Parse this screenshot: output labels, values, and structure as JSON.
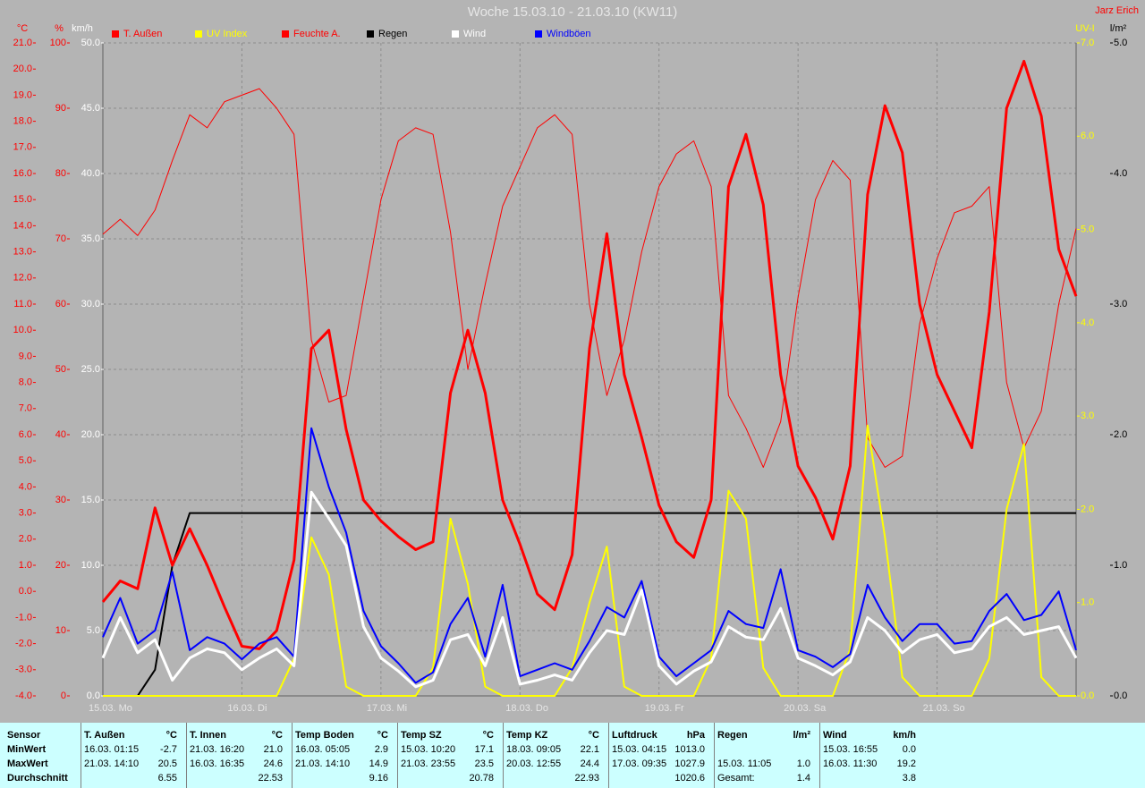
{
  "chart_data": {
    "type": "line",
    "title": "Woche 15.03.10 - 21.03.10 (KW11)",
    "subtitle": "Jarz Erich",
    "grid": true,
    "grid_axis": 2,
    "x": [
      0,
      3,
      6,
      9,
      12,
      15,
      18,
      21,
      24,
      27,
      30,
      33,
      36,
      39,
      42,
      45,
      48,
      51,
      54,
      57,
      60,
      63,
      66,
      69,
      72,
      75,
      78,
      81,
      84,
      87,
      90,
      93,
      96,
      99,
      102,
      105,
      108,
      111,
      114,
      117,
      120,
      123,
      126,
      129,
      132,
      135,
      138,
      141,
      144,
      147,
      150,
      153,
      156,
      159,
      162,
      165,
      168
    ],
    "xlim": [
      0,
      168
    ],
    "xticks": [
      {
        "value": 0,
        "label": "15.03. Mo"
      },
      {
        "value": 24,
        "label": "16.03. Di"
      },
      {
        "value": 48,
        "label": "17.03. Mi"
      },
      {
        "value": 72,
        "label": "18.03. Do"
      },
      {
        "value": 96,
        "label": "19.03. Fr"
      },
      {
        "value": 120,
        "label": "20.03. Sa"
      },
      {
        "value": 144,
        "label": "21.03. So"
      }
    ],
    "axes": [
      {
        "label": "°C",
        "color": "#ff0000",
        "side": "left",
        "lim": [
          -4,
          21
        ],
        "ticks": [
          {
            "value": 21,
            "label": "21.0"
          },
          {
            "value": 20,
            "label": "20.0"
          },
          {
            "value": 19,
            "label": "19.0"
          },
          {
            "value": 18,
            "label": "18.0"
          },
          {
            "value": 17,
            "label": "17.0"
          },
          {
            "value": 16,
            "label": "16.0"
          },
          {
            "value": 15,
            "label": "15.0"
          },
          {
            "value": 14,
            "label": "14.0"
          },
          {
            "value": 13,
            "label": "13.0"
          },
          {
            "value": 12,
            "label": "12.0"
          },
          {
            "value": 11,
            "label": "11.0"
          },
          {
            "value": 10,
            "label": "10.0"
          },
          {
            "value": 9,
            "label": "9.0"
          },
          {
            "value": 8,
            "label": "8.0"
          },
          {
            "value": 7,
            "label": "7.0"
          },
          {
            "value": 6,
            "label": "6.0"
          },
          {
            "value": 5,
            "label": "5.0"
          },
          {
            "value": 4,
            "label": "4.0"
          },
          {
            "value": 3,
            "label": "3.0"
          },
          {
            "value": 2,
            "label": "2.0"
          },
          {
            "value": 1,
            "label": "1.0"
          },
          {
            "value": 0,
            "label": "0.0"
          },
          {
            "value": -1,
            "label": "-1.0"
          },
          {
            "value": -2,
            "label": "-2.0"
          },
          {
            "value": -3,
            "label": "-3.0"
          },
          {
            "value": -4,
            "label": "-4.0"
          }
        ]
      },
      {
        "label": "%",
        "color": "#ff0000",
        "side": "left",
        "lim": [
          0,
          100
        ],
        "ticks": [
          100,
          90,
          80,
          70,
          60,
          50,
          40,
          30,
          20,
          10,
          0
        ]
      },
      {
        "label": "km/h",
        "color": "#ffffff",
        "side": "left",
        "lim": [
          0,
          50
        ],
        "ticks": [
          {
            "value": 50,
            "label": "50.0"
          },
          {
            "value": 45,
            "label": "45.0"
          },
          {
            "value": 40,
            "label": "40.0"
          },
          {
            "value": 35,
            "label": "35.0"
          },
          {
            "value": 30,
            "label": "30.0"
          },
          {
            "value": 25,
            "label": "25.0"
          },
          {
            "value": 20,
            "label": "20.0"
          },
          {
            "value": 15,
            "label": "15.0"
          },
          {
            "value": 10,
            "label": "10.0"
          },
          {
            "value": 5,
            "label": "5.0"
          },
          {
            "value": 0,
            "label": "0.0"
          }
        ]
      },
      {
        "label": "UV-I",
        "color": "#ffff00",
        "side": "right",
        "lim": [
          0,
          7
        ],
        "ticks": [
          {
            "value": 7,
            "label": "7.0"
          },
          {
            "value": 6,
            "label": "6.0"
          },
          {
            "value": 5,
            "label": "5.0"
          },
          {
            "value": 4,
            "label": "4.0"
          },
          {
            "value": 3,
            "label": "3.0"
          },
          {
            "value": 2,
            "label": "2.0"
          },
          {
            "value": 1,
            "label": "1.0"
          },
          {
            "value": 0,
            "label": "0.0"
          }
        ]
      },
      {
        "label": "l/m²",
        "color": "#000000",
        "side": "right",
        "lim": [
          0,
          5
        ],
        "ticks": [
          {
            "value": 5,
            "label": "5.0"
          },
          {
            "value": 4,
            "label": "4.0"
          },
          {
            "value": 3,
            "label": "3.0"
          },
          {
            "value": 2,
            "label": "2.0"
          },
          {
            "value": 1,
            "label": "1.0"
          },
          {
            "value": 0,
            "label": "0.0"
          }
        ]
      }
    ],
    "series": [
      {
        "name": "T. Außen",
        "color": "#ff0000",
        "axis": 0,
        "width": 3,
        "values": [
          -0.4,
          0.4,
          0.1,
          3.2,
          1.0,
          2.4,
          1.0,
          -0.6,
          -2.1,
          -2.2,
          -1.5,
          1.2,
          9.3,
          10.0,
          6.2,
          3.5,
          2.7,
          2.1,
          1.6,
          1.9,
          7.6,
          10.0,
          7.6,
          3.5,
          1.8,
          -0.1,
          -0.7,
          1.4,
          9.3,
          13.7,
          8.3,
          5.9,
          3.3,
          1.9,
          1.3,
          3.5,
          15.5,
          17.5,
          14.8,
          8.3,
          4.8,
          3.6,
          2.0,
          4.8,
          15.2,
          18.6,
          16.8,
          11.0,
          8.3,
          6.9,
          5.5,
          10.7,
          18.5,
          20.3,
          18.2,
          13.1,
          11.3
        ]
      },
      {
        "name": "UV Index",
        "color": "#ffff00",
        "axis": 3,
        "width": 2,
        "values": [
          0,
          0,
          0,
          0,
          0,
          0,
          0,
          0,
          0,
          0,
          0,
          0.4,
          1.7,
          1.3,
          0.1,
          0,
          0,
          0,
          0,
          0.3,
          1.9,
          1.2,
          0.1,
          0,
          0,
          0,
          0,
          0.3,
          1.0,
          1.6,
          0.1,
          0,
          0,
          0,
          0,
          0.4,
          2.2,
          1.9,
          0.3,
          0,
          0,
          0,
          0,
          0.5,
          2.9,
          1.7,
          0.2,
          0,
          0,
          0,
          0,
          0.4,
          2.0,
          2.7,
          0.2,
          0,
          0
        ]
      },
      {
        "name": "Feuchte A.",
        "color": "#ff0000",
        "axis": 1,
        "width": 1,
        "values": [
          70.7,
          73,
          70.5,
          74.4,
          82,
          89,
          87,
          91,
          92,
          93,
          90,
          86,
          54.5,
          45,
          46,
          61,
          76,
          85,
          87,
          86,
          71,
          50,
          63,
          75,
          81,
          87,
          89,
          86,
          60,
          46,
          54.5,
          68,
          78,
          83,
          85,
          78,
          46,
          41,
          35,
          42,
          61,
          76,
          82,
          79,
          39.5,
          35,
          36.7,
          57,
          67,
          74,
          75,
          78,
          48,
          38,
          43.6,
          60,
          71.6
        ]
      },
      {
        "name": "Regen",
        "color": "#000000",
        "axis": 4,
        "width": 2,
        "values": [
          0,
          0,
          0,
          0.2,
          1.0,
          1.4,
          1.4,
          1.4,
          1.4,
          1.4,
          1.4,
          1.4,
          1.4,
          1.4,
          1.4,
          1.4,
          1.4,
          1.4,
          1.4,
          1.4,
          1.4,
          1.4,
          1.4,
          1.4,
          1.4,
          1.4,
          1.4,
          1.4,
          1.4,
          1.4,
          1.4,
          1.4,
          1.4,
          1.4,
          1.4,
          1.4,
          1.4,
          1.4,
          1.4,
          1.4,
          1.4,
          1.4,
          1.4,
          1.4,
          1.4,
          1.4,
          1.4,
          1.4,
          1.4,
          1.4,
          1.4,
          1.4,
          1.4,
          1.4,
          1.4,
          1.4,
          1.4
        ]
      },
      {
        "name": "Wind",
        "color": "#ffffff",
        "axis": 2,
        "width": 3,
        "values": [
          2.9,
          6,
          3.3,
          4.3,
          1.2,
          2.9,
          3.6,
          3.3,
          2,
          2.9,
          3.6,
          2.3,
          15.6,
          13.6,
          11.5,
          5.3,
          2.9,
          1.9,
          0.7,
          1.2,
          4.3,
          4.7,
          2.3,
          6,
          0.9,
          1.2,
          1.6,
          1.2,
          3.3,
          5,
          4.7,
          8.1,
          2.3,
          0.9,
          1.9,
          2.6,
          5.3,
          4.5,
          4.3,
          6.7,
          2.9,
          2.3,
          1.6,
          2.6,
          6,
          5,
          3.3,
          4.3,
          4.7,
          3.3,
          3.6,
          5.3,
          6,
          4.7,
          5,
          5.3,
          2.9
        ]
      },
      {
        "name": "Windböen",
        "color": "#0000ff",
        "axis": 2,
        "width": 2,
        "values": [
          4.5,
          7.5,
          4,
          5,
          9.5,
          3.5,
          4.5,
          4,
          2.8,
          4,
          4.5,
          3,
          20.5,
          16,
          12.5,
          6.5,
          3.8,
          2.5,
          1,
          1.8,
          5.5,
          7.5,
          3,
          8.5,
          1.5,
          2,
          2.5,
          2,
          4.2,
          6.8,
          6,
          8.8,
          3,
          1.5,
          2.5,
          3.5,
          6.5,
          5.5,
          5.2,
          9.7,
          3.5,
          3,
          2.2,
          3.2,
          8.5,
          6,
          4.2,
          5.5,
          5.5,
          4,
          4.2,
          6.5,
          7.8,
          5.8,
          6.2,
          8,
          3.5
        ]
      }
    ]
  },
  "table": {
    "row_labels": [
      "Sensor",
      "MinWert",
      "MaxWert",
      "Durchschnitt"
    ],
    "columns": [
      {
        "name": "T. Außen",
        "unit": "°C",
        "min": [
          "16.03. 01:15",
          "-2.7"
        ],
        "max": [
          "21.03. 14:10",
          "20.5"
        ],
        "avg": "6.55"
      },
      {
        "name": "T. Innen",
        "unit": "°C",
        "min": [
          "21.03. 16:20",
          "21.0"
        ],
        "max": [
          "16.03. 16:35",
          "24.6"
        ],
        "avg": "22.53"
      },
      {
        "name": "Temp Boden",
        "unit": "°C",
        "min": [
          "16.03. 05:05",
          "2.9"
        ],
        "max": [
          "21.03. 14:10",
          "14.9"
        ],
        "avg": "9.16"
      },
      {
        "name": "Temp SZ",
        "unit": "°C",
        "min": [
          "15.03. 10:20",
          "17.1"
        ],
        "max": [
          "21.03. 23:55",
          "23.5"
        ],
        "avg": "20.78"
      },
      {
        "name": "Temp KZ",
        "unit": "°C",
        "min": [
          "18.03. 09:05",
          "22.1"
        ],
        "max": [
          "20.03. 12:55",
          "24.4"
        ],
        "avg": "22.93"
      },
      {
        "name": "Luftdruck",
        "unit": "hPa",
        "min": [
          "15.03. 04:15",
          "1013.0"
        ],
        "max": [
          "17.03. 09:35",
          "1027.9"
        ],
        "avg": "1020.6"
      },
      {
        "name": "Regen",
        "unit": "l/m²",
        "max": [
          "15.03. 11:05",
          "1.0"
        ],
        "avg_label": "Gesamt:",
        "avg": "1.4"
      },
      {
        "name": "Wind",
        "unit": "km/h",
        "min": [
          "15.03. 16:55",
          "0.0"
        ],
        "max": [
          "16.03. 11:30",
          "19.2"
        ],
        "avg": "3.8"
      }
    ]
  }
}
